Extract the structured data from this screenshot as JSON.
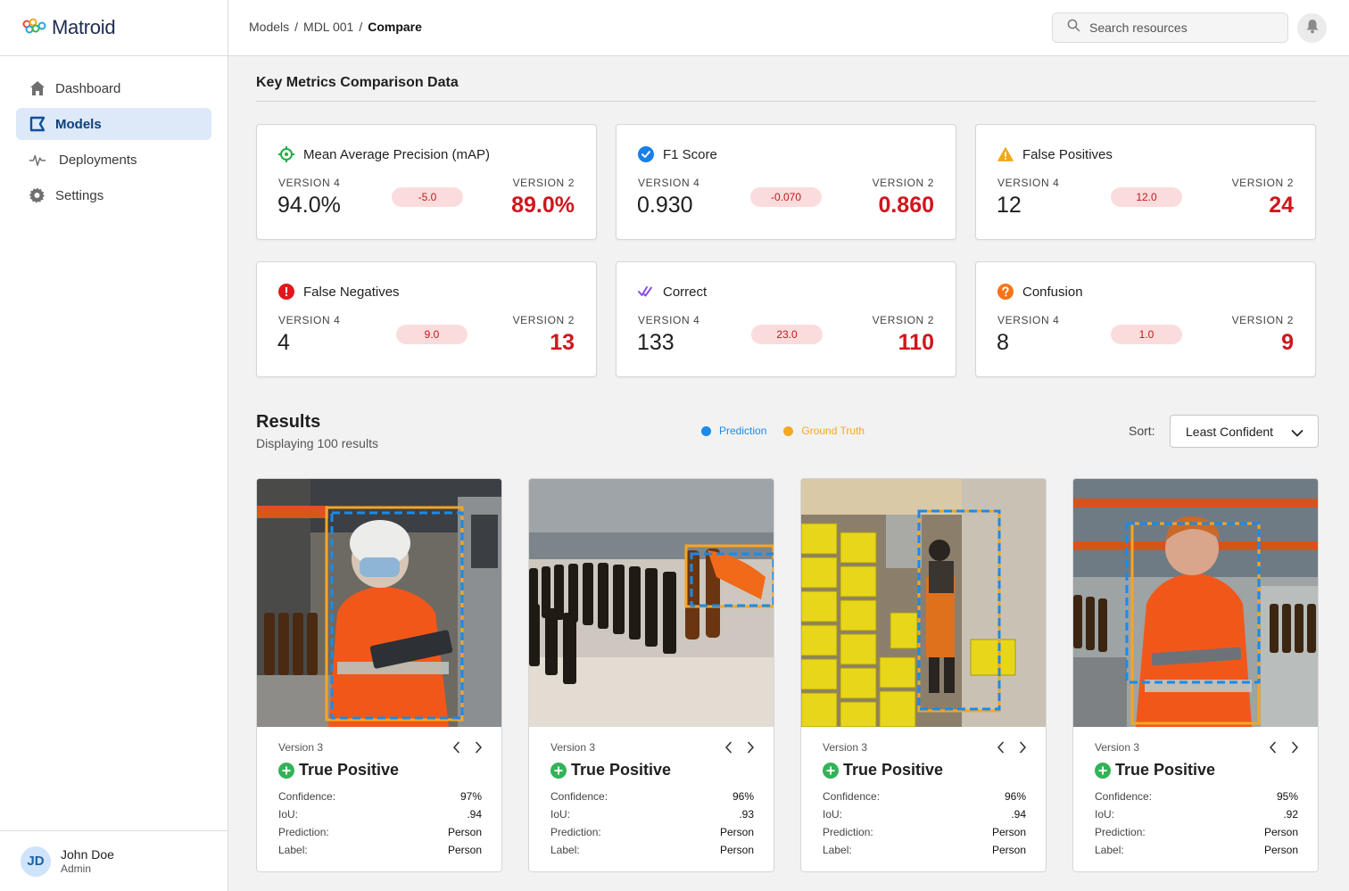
{
  "app": {
    "name": "Matroid"
  },
  "sidebar": {
    "items": [
      {
        "label": "Dashboard",
        "icon": "home-icon"
      },
      {
        "label": "Models",
        "icon": "models-icon",
        "active": true
      },
      {
        "label": "Deployments",
        "icon": "pulse-icon"
      },
      {
        "label": "Settings",
        "icon": "gear-icon"
      }
    ]
  },
  "user": {
    "initials": "JD",
    "name": "John Doe",
    "role": "Admin"
  },
  "header": {
    "breadcrumb": [
      "Models",
      "MDL 001",
      "Compare"
    ],
    "search_placeholder": "Search resources"
  },
  "metrics_section": {
    "title": "Key Metrics Comparison Data",
    "cards": [
      {
        "title": "Mean Average Precision (mAP)",
        "icon": "target-icon",
        "left_label": "VERSION 4",
        "left_value": "94.0%",
        "delta": "-5.0",
        "right_label": "VERSION 2",
        "right_value": "89.0%"
      },
      {
        "title": "F1 Score",
        "icon": "check-circle-icon",
        "left_label": "VERSION 4",
        "left_value": "0.930",
        "delta": "-0.070",
        "right_label": "VERSION 2",
        "right_value": "0.860"
      },
      {
        "title": "False Positives",
        "icon": "warning-icon",
        "left_label": "VERSION 4",
        "left_value": "12",
        "delta": "12.0",
        "right_label": "VERSION 2",
        "right_value": "24"
      },
      {
        "title": "False Negatives",
        "icon": "alert-icon",
        "left_label": "VERSION 4",
        "left_value": "4",
        "delta": "9.0",
        "right_label": "VERSION 2",
        "right_value": "13"
      },
      {
        "title": "Correct",
        "icon": "double-check-icon",
        "left_label": "VERSION 4",
        "left_value": "133",
        "delta": "23.0",
        "right_label": "VERSION 2",
        "right_value": "110"
      },
      {
        "title": "Confusion",
        "icon": "question-icon",
        "left_label": "VERSION 4",
        "left_value": "8",
        "delta": "1.0",
        "right_label": "VERSION 2",
        "right_value": "9"
      }
    ]
  },
  "results": {
    "title": "Results",
    "subtitle": "Displaying 100 results",
    "legend": [
      {
        "label": "Prediction",
        "color": "#1a8be8"
      },
      {
        "label": "Ground Truth",
        "color": "#f5a623"
      }
    ],
    "sort_label": "Sort:",
    "sort_value": "Least Confident",
    "labels": {
      "confidence": "Confidence:",
      "iou": "IoU:",
      "prediction": "Prediction:",
      "label": "Label:"
    },
    "cards": [
      {
        "version": "Version 3",
        "result": "True Positive",
        "confidence": "97%",
        "iou": ".94",
        "prediction": "Person",
        "label": "Person"
      },
      {
        "version": "Version 3",
        "result": "True Positive",
        "confidence": "96%",
        "iou": ".93",
        "prediction": "Person",
        "label": "Person"
      },
      {
        "version": "Version 3",
        "result": "True Positive",
        "confidence": "96%",
        "iou": ".94",
        "prediction": "Person",
        "label": "Person"
      },
      {
        "version": "Version 3",
        "result": "True Positive",
        "confidence": "95%",
        "iou": ".92",
        "prediction": "Person",
        "label": "Person"
      }
    ]
  }
}
